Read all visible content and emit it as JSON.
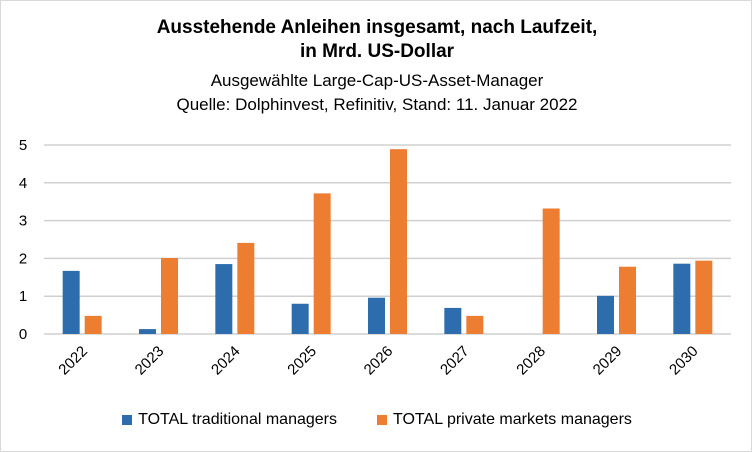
{
  "chart_data": {
    "type": "bar",
    "title": "Ausstehende Anleihen insgesamt, nach Laufzeit,",
    "title_line2": "in Mrd. US-Dollar",
    "subtitle": "Ausgewählte Large-Cap-US-Asset-Manager",
    "source": "Quelle: Dolphinvest, Refinitiv, Stand: 11. Januar 2022",
    "categories": [
      "2022",
      "2023",
      "2024",
      "2025",
      "2026",
      "2027",
      "2028",
      "2029",
      "2030"
    ],
    "series": [
      {
        "name": "TOTAL traditional managers",
        "color": "#2e6dad",
        "values": [
          1.67,
          0.13,
          1.85,
          0.8,
          0.96,
          0.69,
          0,
          1.01,
          1.86
        ]
      },
      {
        "name": "TOTAL private markets managers",
        "color": "#ed7d31",
        "values": [
          0.48,
          2.01,
          2.41,
          3.72,
          4.89,
          0.48,
          3.32,
          1.78,
          1.94
        ]
      }
    ],
    "ylim": [
      0,
      5
    ],
    "yticks": [
      "0",
      "1",
      "2",
      "3",
      "4",
      "5"
    ],
    "grid": true,
    "legend": "bottom"
  }
}
